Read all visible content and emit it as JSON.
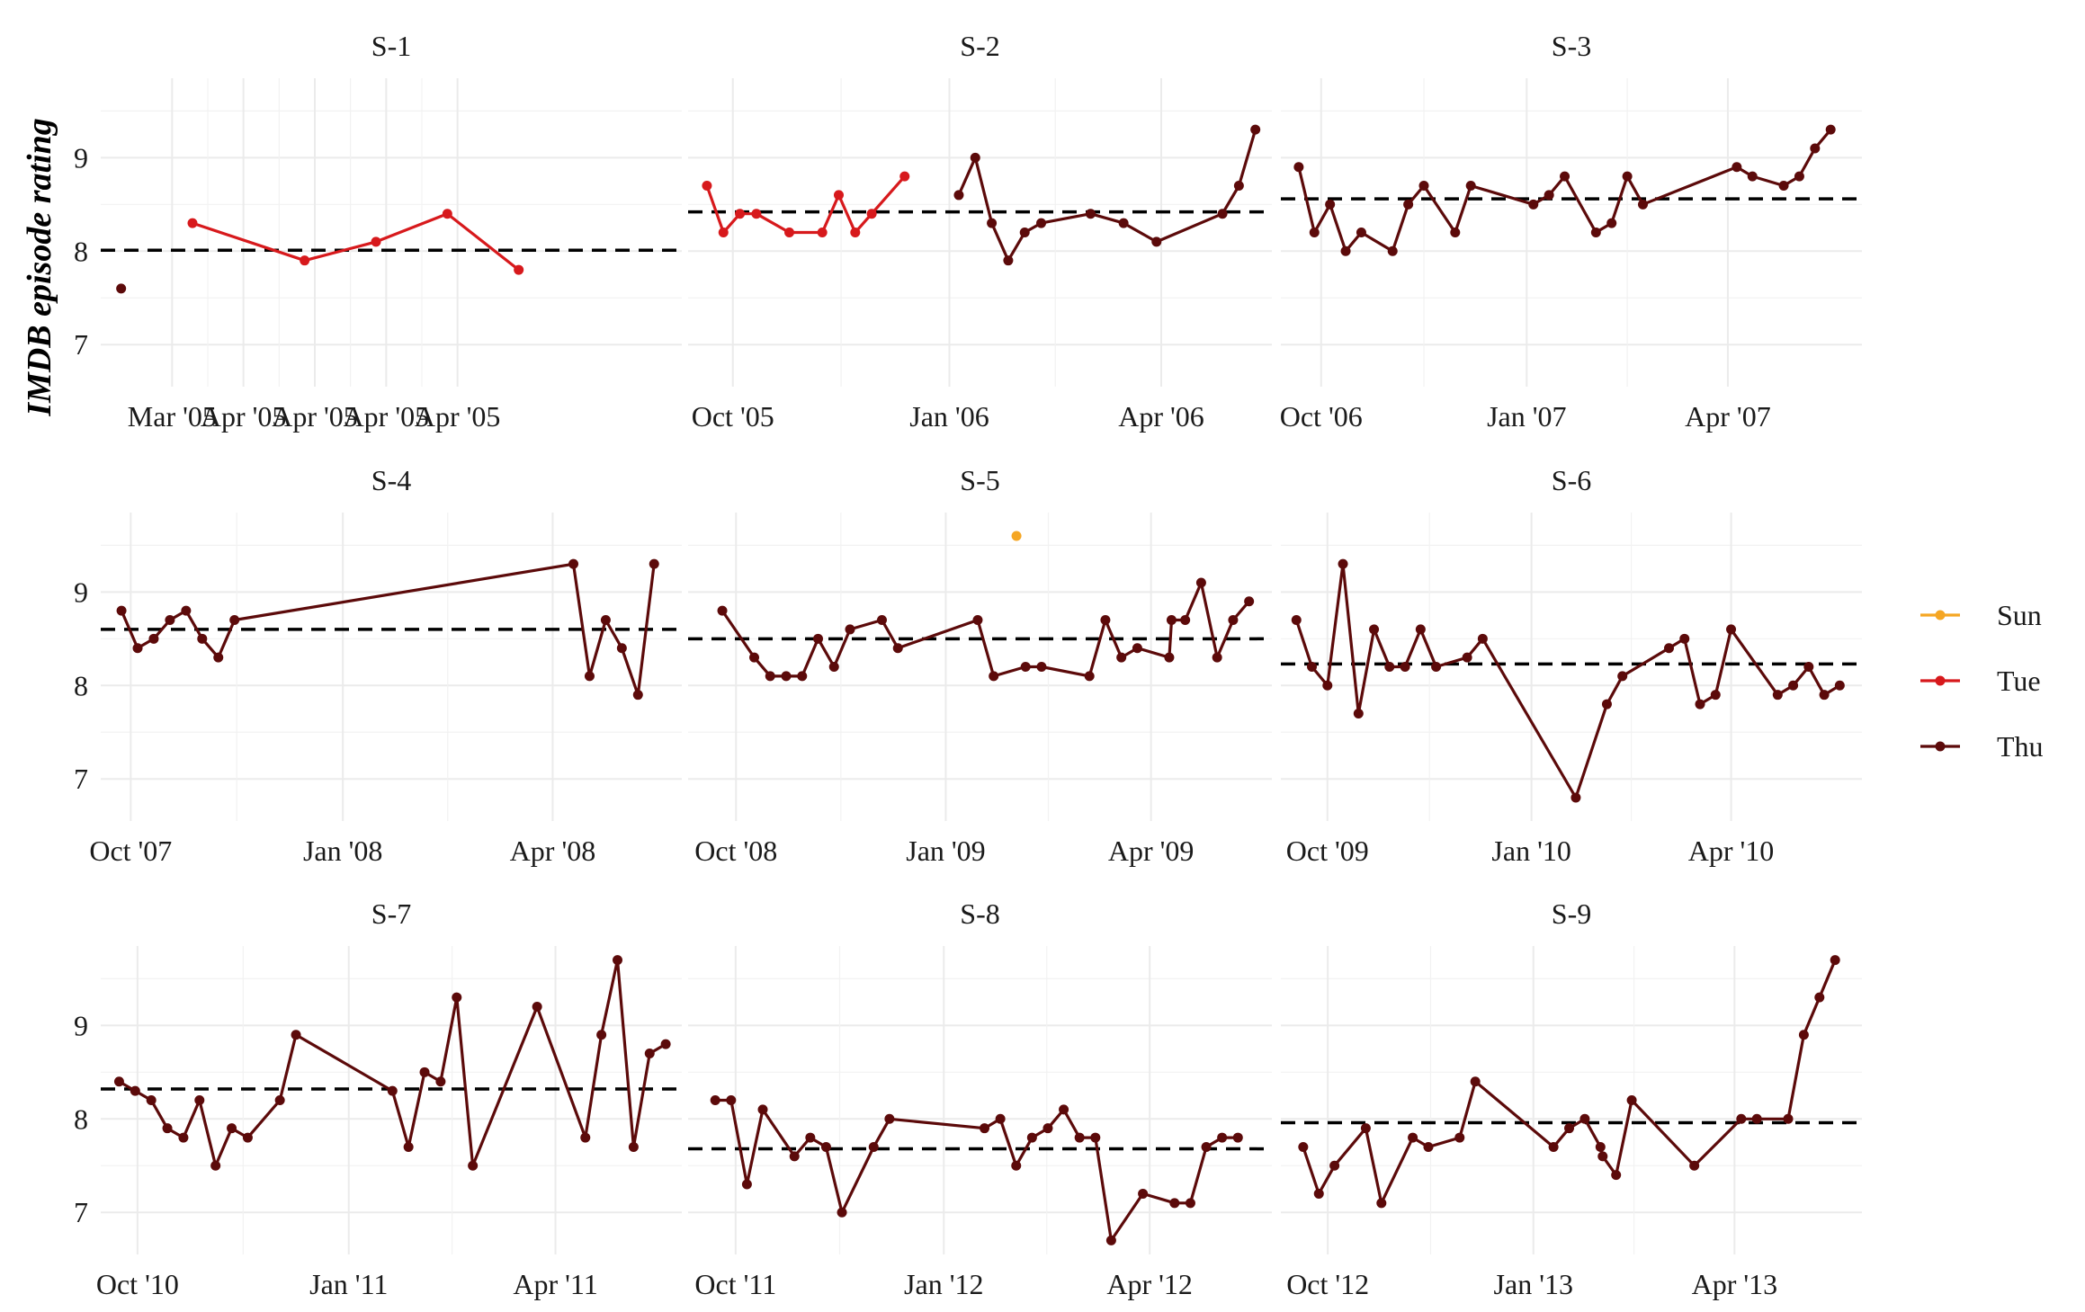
{
  "chart_data": {
    "type": "line",
    "ylabel": "IMDB episode rating",
    "grid": true,
    "legend_position": "right",
    "legend": [
      {
        "name": "Sun",
        "color": "#f5a623"
      },
      {
        "name": "Tue",
        "color": "#d7191c"
      },
      {
        "name": "Thu",
        "color": "#5c0a0a"
      }
    ],
    "colors": {
      "Sun": "#f5a623",
      "Tue": "#d7191c",
      "Thu": "#5c0a0a",
      "mean_line": "#000000",
      "grid": "#ebebeb"
    },
    "yticks": [
      7,
      8,
      9
    ],
    "ylim": [
      6.55,
      9.85
    ],
    "panels": [
      {
        "title": "S-1",
        "xlim": [
          "2005-03-17",
          "2005-05-13"
        ],
        "xticks": [
          {
            "date": "2005-03-24",
            "label": "Mar '05"
          },
          {
            "date": "2005-03-31",
            "label": "Apr '05"
          },
          {
            "date": "2005-04-07",
            "label": "Apr '05"
          },
          {
            "date": "2005-04-14",
            "label": "Apr '05"
          },
          {
            "date": "2005-04-21",
            "label": "Apr '05"
          }
        ],
        "mean": 8.01,
        "series": [
          {
            "day": "Thu",
            "x": [
              "2005-03-19"
            ],
            "y": [
              7.6
            ]
          },
          {
            "day": "Tue",
            "x": [
              "2005-03-26",
              "2005-04-06",
              "2005-04-13",
              "2005-04-20",
              "2005-04-27"
            ],
            "y": [
              8.3,
              7.9,
              8.1,
              8.4,
              7.8
            ]
          }
        ]
      },
      {
        "title": "S-2",
        "xlim": [
          "2005-09-12",
          "2006-05-18"
        ],
        "xticks": [
          {
            "date": "2005-10-01",
            "label": "Oct '05"
          },
          {
            "date": "2006-01-01",
            "label": "Jan '06"
          },
          {
            "date": "2006-04-01",
            "label": "Apr '06"
          }
        ],
        "mean": 8.42,
        "series": [
          {
            "day": "Tue",
            "x": [
              "2005-09-20",
              "2005-09-27",
              "2005-10-04",
              "2005-10-11",
              "2005-10-25",
              "2005-11-08",
              "2005-11-15",
              "2005-11-22",
              "2005-11-29",
              "2005-12-13"
            ],
            "y": [
              8.7,
              8.2,
              8.4,
              8.4,
              8.2,
              8.2,
              8.6,
              8.2,
              8.4,
              8.8
            ]
          },
          {
            "day": "Thu",
            "x": [
              "2006-01-05",
              "2006-01-12",
              "2006-01-19",
              "2006-01-26",
              "2006-02-02",
              "2006-02-09",
              "2006-03-02",
              "2006-03-16",
              "2006-03-30",
              "2006-04-27",
              "2006-05-04",
              "2006-05-11"
            ],
            "y": [
              8.6,
              9.0,
              8.3,
              7.9,
              8.2,
              8.3,
              8.4,
              8.3,
              8.1,
              8.4,
              8.7,
              9.3
            ]
          }
        ]
      },
      {
        "title": "S-3",
        "xlim": [
          "2006-09-13",
          "2007-05-31"
        ],
        "xticks": [
          {
            "date": "2006-10-01",
            "label": "Oct '06"
          },
          {
            "date": "2007-01-01",
            "label": "Jan '07"
          },
          {
            "date": "2007-04-01",
            "label": "Apr '07"
          }
        ],
        "mean": 8.56,
        "series": [
          {
            "day": "Thu",
            "x": [
              "2006-09-21",
              "2006-09-28",
              "2006-10-05",
              "2006-10-12",
              "2006-10-19",
              "2006-11-02",
              "2006-11-09",
              "2006-11-16",
              "2006-11-30",
              "2006-12-07",
              "2007-01-04",
              "2007-01-11",
              "2007-01-18",
              "2007-02-01",
              "2007-02-08",
              "2007-02-15",
              "2007-02-22",
              "2007-04-05",
              "2007-04-12",
              "2007-04-26",
              "2007-05-03",
              "2007-05-10",
              "2007-05-17"
            ],
            "y": [
              8.9,
              8.2,
              8.5,
              8.0,
              8.2,
              8.0,
              8.5,
              8.7,
              8.2,
              8.7,
              8.5,
              8.6,
              8.8,
              8.2,
              8.3,
              8.8,
              8.5,
              8.9,
              8.8,
              8.7,
              8.8,
              9.1,
              9.3
            ]
          }
        ]
      },
      {
        "title": "S-4",
        "xlim": [
          "2007-09-18",
          "2008-05-27"
        ],
        "xticks": [
          {
            "date": "2007-10-01",
            "label": "Oct '07"
          },
          {
            "date": "2008-01-01",
            "label": "Jan '08"
          },
          {
            "date": "2008-04-01",
            "label": "Apr '08"
          }
        ],
        "mean": 8.6,
        "series": [
          {
            "day": "Thu",
            "x": [
              "2007-09-27",
              "2007-10-04",
              "2007-10-11",
              "2007-10-18",
              "2007-10-25",
              "2007-11-01",
              "2007-11-08",
              "2007-11-15",
              "2008-04-10",
              "2008-04-17",
              "2008-04-24",
              "2008-05-01",
              "2008-05-08",
              "2008-05-15"
            ],
            "y": [
              8.8,
              8.4,
              8.5,
              8.7,
              8.8,
              8.5,
              8.3,
              8.7,
              9.3,
              8.1,
              8.7,
              8.4,
              7.9,
              9.3
            ]
          }
        ]
      },
      {
        "title": "S-5",
        "xlim": [
          "2008-09-10",
          "2009-05-24"
        ],
        "xticks": [
          {
            "date": "2008-10-01",
            "label": "Oct '08"
          },
          {
            "date": "2009-01-01",
            "label": "Jan '09"
          },
          {
            "date": "2009-04-01",
            "label": "Apr '09"
          }
        ],
        "mean": 8.5,
        "series": [
          {
            "day": "Thu",
            "x": [
              "2008-09-25",
              "2008-10-09",
              "2008-10-16",
              "2008-10-23",
              "2008-10-30",
              "2008-11-06",
              "2008-11-13",
              "2008-11-20",
              "2008-12-04",
              "2008-12-11",
              "2009-01-15",
              "2009-01-22",
              "2009-02-05",
              "2009-02-12",
              "2009-03-05",
              "2009-03-12",
              "2009-03-19",
              "2009-03-26",
              "2009-04-09",
              "2009-04-10",
              "2009-04-16",
              "2009-04-23",
              "2009-04-30",
              "2009-05-07",
              "2009-05-14"
            ],
            "y": [
              8.8,
              8.3,
              8.1,
              8.1,
              8.1,
              8.5,
              8.2,
              8.6,
              8.7,
              8.4,
              8.7,
              8.1,
              8.2,
              8.2,
              8.1,
              8.7,
              8.3,
              8.4,
              8.3,
              8.7,
              8.7,
              9.1,
              8.3,
              8.7,
              8.9
            ]
          },
          {
            "day": "Sun",
            "x": [
              "2009-02-01"
            ],
            "y": [
              9.6
            ]
          }
        ]
      },
      {
        "title": "S-6",
        "xlim": [
          "2009-09-10",
          "2010-05-30"
        ],
        "xticks": [
          {
            "date": "2009-10-01",
            "label": "Oct '09"
          },
          {
            "date": "2010-01-01",
            "label": "Jan '10"
          },
          {
            "date": "2010-04-01",
            "label": "Apr '10"
          }
        ],
        "mean": 8.23,
        "series": [
          {
            "day": "Thu",
            "x": [
              "2009-09-17",
              "2009-09-24",
              "2009-10-01",
              "2009-10-08",
              "2009-10-15",
              "2009-10-22",
              "2009-10-29",
              "2009-11-05",
              "2009-11-12",
              "2009-11-19",
              "2009-12-03",
              "2009-12-10",
              "2010-01-21",
              "2010-02-04",
              "2010-02-11",
              "2010-03-04",
              "2010-03-11",
              "2010-03-18",
              "2010-03-25",
              "2010-04-01",
              "2010-04-22",
              "2010-04-29",
              "2010-05-06",
              "2010-05-13",
              "2010-05-20"
            ],
            "y": [
              8.7,
              8.2,
              8.0,
              9.3,
              7.7,
              8.6,
              8.2,
              8.2,
              8.6,
              8.2,
              8.3,
              8.5,
              6.8,
              7.8,
              8.1,
              8.4,
              8.5,
              7.8,
              7.9,
              8.6,
              7.9,
              8.0,
              8.2,
              7.9,
              8.0
            ]
          }
        ]
      },
      {
        "title": "S-7",
        "xlim": [
          "2010-09-15",
          "2011-05-26"
        ],
        "xticks": [
          {
            "date": "2010-10-01",
            "label": "Oct '10"
          },
          {
            "date": "2011-01-01",
            "label": "Jan '11"
          },
          {
            "date": "2011-04-01",
            "label": "Apr '11"
          }
        ],
        "mean": 8.32,
        "series": [
          {
            "day": "Thu",
            "x": [
              "2010-09-23",
              "2010-09-30",
              "2010-10-07",
              "2010-10-14",
              "2010-10-21",
              "2010-10-28",
              "2010-11-04",
              "2010-11-11",
              "2010-11-18",
              "2010-12-02",
              "2010-12-09",
              "2011-01-20",
              "2011-01-27",
              "2011-02-03",
              "2011-02-10",
              "2011-02-17",
              "2011-02-24",
              "2011-03-24",
              "2011-04-14",
              "2011-04-21",
              "2011-04-28",
              "2011-05-05",
              "2011-05-12",
              "2011-05-19"
            ],
            "y": [
              8.4,
              8.3,
              8.2,
              7.9,
              7.8,
              8.2,
              7.5,
              7.9,
              7.8,
              8.2,
              8.9,
              8.3,
              7.7,
              8.5,
              8.4,
              9.3,
              7.5,
              9.2,
              7.8,
              8.9,
              9.7,
              7.7,
              8.7,
              8.8
            ]
          }
        ]
      },
      {
        "title": "S-8",
        "xlim": [
          "2011-09-10",
          "2012-05-25"
        ],
        "xticks": [
          {
            "date": "2011-10-01",
            "label": "Oct '11"
          },
          {
            "date": "2012-01-01",
            "label": "Jan '12"
          },
          {
            "date": "2012-04-01",
            "label": "Apr '12"
          }
        ],
        "mean": 7.68,
        "series": [
          {
            "day": "Thu",
            "x": [
              "2011-09-22",
              "2011-09-29",
              "2011-10-06",
              "2011-10-13",
              "2011-10-27",
              "2011-11-03",
              "2011-11-10",
              "2011-11-17",
              "2011-12-01",
              "2011-12-08",
              "2012-01-19",
              "2012-01-26",
              "2012-02-02",
              "2012-02-09",
              "2012-02-16",
              "2012-02-23",
              "2012-03-01",
              "2012-03-08",
              "2012-03-15",
              "2012-03-29",
              "2012-04-12",
              "2012-04-19",
              "2012-04-26",
              "2012-05-03",
              "2012-05-10"
            ],
            "y": [
              8.2,
              8.2,
              7.3,
              8.1,
              7.6,
              7.8,
              7.7,
              7.0,
              7.7,
              8.0,
              7.9,
              8.0,
              7.5,
              7.8,
              7.9,
              8.1,
              7.8,
              7.8,
              6.7,
              7.2,
              7.1,
              7.1,
              7.7,
              7.8,
              7.8
            ]
          }
        ]
      },
      {
        "title": "S-9",
        "xlim": [
          "2012-09-10",
          "2013-05-28"
        ],
        "xticks": [
          {
            "date": "2012-10-01",
            "label": "Oct '12"
          },
          {
            "date": "2013-01-01",
            "label": "Jan '13"
          },
          {
            "date": "2013-04-01",
            "label": "Apr '13"
          }
        ],
        "mean": 7.96,
        "series": [
          {
            "day": "Thu",
            "x": [
              "2012-09-20",
              "2012-09-27",
              "2012-10-04",
              "2012-10-18",
              "2012-10-25",
              "2012-11-08",
              "2012-11-15",
              "2012-11-29",
              "2012-12-06",
              "2013-01-10",
              "2013-01-17",
              "2013-01-24",
              "2013-01-31",
              "2013-02-01",
              "2013-02-07",
              "2013-02-14",
              "2013-03-14",
              "2013-04-04",
              "2013-04-11",
              "2013-04-25",
              "2013-05-02",
              "2013-05-09",
              "2013-05-16"
            ],
            "y": [
              7.7,
              7.2,
              7.5,
              7.9,
              7.1,
              7.8,
              7.7,
              7.8,
              8.4,
              7.7,
              7.9,
              8.0,
              7.7,
              7.6,
              7.4,
              8.2,
              7.5,
              8.0,
              8.0,
              8.0,
              8.9,
              9.3,
              9.7
            ]
          }
        ]
      }
    ]
  }
}
